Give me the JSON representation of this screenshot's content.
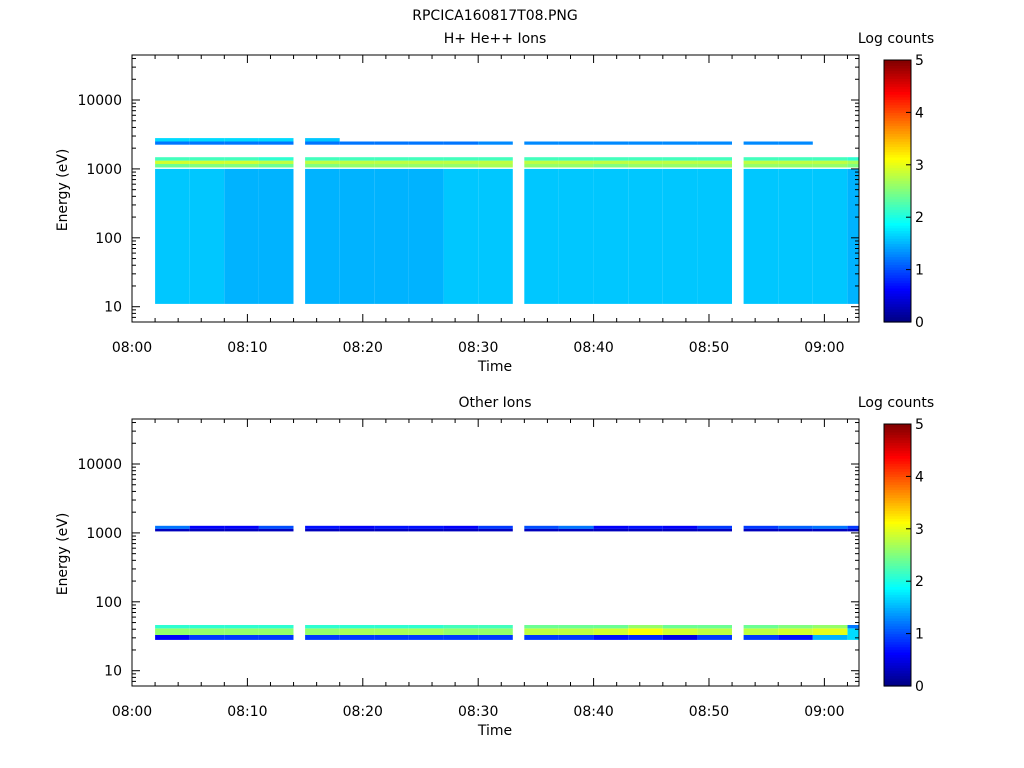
{
  "figure": {
    "title": "RPCICA160817T08.PNG"
  },
  "chart_data": [
    {
      "type": "heatmap",
      "title": "H+ He++ Ions",
      "xlabel": "Time",
      "ylabel": "Energy (eV)",
      "yscale": "log",
      "xlim": [
        "08:00",
        "09:03"
      ],
      "ylim": [
        6,
        45000
      ],
      "xticks": [
        "08:00",
        "08:10",
        "08:20",
        "08:30",
        "08:40",
        "08:50",
        "09:00"
      ],
      "yticks": [
        "10",
        "100",
        "1000",
        "10000"
      ],
      "colorbar": {
        "label": "Log counts",
        "range": [
          0,
          5
        ],
        "ticks": [
          "0",
          "1",
          "2",
          "3",
          "4",
          "5"
        ],
        "colormap": "jet"
      },
      "time_bins": [
        "08:02",
        "08:05",
        "08:08",
        "08:11",
        "08:15",
        "08:18",
        "08:21",
        "08:24",
        "08:27",
        "08:30",
        "08:34",
        "08:37",
        "08:40",
        "08:43",
        "08:46",
        "08:49",
        "08:53",
        "08:56",
        "08:59",
        "09:02"
      ],
      "cells": [
        [
          0,
          11,
          1000,
          1.6
        ],
        [
          1,
          11,
          1000,
          1.6
        ],
        [
          2,
          11,
          1000,
          1.5
        ],
        [
          3,
          11,
          1000,
          1.5
        ],
        [
          4,
          11,
          1000,
          1.5
        ],
        [
          5,
          11,
          1000,
          1.5
        ],
        [
          6,
          11,
          1000,
          1.5
        ],
        [
          7,
          11,
          1000,
          1.5
        ],
        [
          8,
          11,
          1000,
          1.6
        ],
        [
          9,
          11,
          1000,
          1.6
        ],
        [
          10,
          11,
          1000,
          1.6
        ],
        [
          11,
          11,
          1000,
          1.6
        ],
        [
          12,
          11,
          1000,
          1.6
        ],
        [
          13,
          11,
          1000,
          1.6
        ],
        [
          14,
          11,
          1000,
          1.6
        ],
        [
          15,
          11,
          1000,
          1.6
        ],
        [
          16,
          11,
          1000,
          1.6
        ],
        [
          17,
          11,
          1000,
          1.6
        ],
        [
          18,
          11,
          1000,
          1.6
        ],
        [
          19,
          11,
          1000,
          1.5
        ],
        [
          0,
          1050,
          1180,
          2.4
        ],
        [
          1,
          1050,
          1180,
          2.5
        ],
        [
          2,
          1050,
          1180,
          2.5
        ],
        [
          3,
          1050,
          1180,
          2.4
        ],
        [
          4,
          1050,
          1180,
          2.5
        ],
        [
          5,
          1050,
          1180,
          2.6
        ],
        [
          6,
          1050,
          1180,
          2.6
        ],
        [
          7,
          1050,
          1180,
          2.6
        ],
        [
          8,
          1050,
          1180,
          2.6
        ],
        [
          9,
          1050,
          1180,
          2.7
        ],
        [
          10,
          1050,
          1180,
          2.6
        ],
        [
          11,
          1050,
          1180,
          2.6
        ],
        [
          12,
          1050,
          1180,
          2.5
        ],
        [
          13,
          1050,
          1180,
          2.6
        ],
        [
          14,
          1050,
          1180,
          2.6
        ],
        [
          15,
          1050,
          1180,
          2.6
        ],
        [
          16,
          1050,
          1180,
          2.6
        ],
        [
          17,
          1050,
          1180,
          2.6
        ],
        [
          18,
          1050,
          1180,
          2.6
        ],
        [
          19,
          1050,
          1180,
          2.5
        ],
        [
          0,
          1180,
          1320,
          2.9
        ],
        [
          1,
          1180,
          1320,
          2.9
        ],
        [
          2,
          1180,
          1320,
          2.9
        ],
        [
          3,
          1180,
          1320,
          2.8
        ],
        [
          4,
          1180,
          1320,
          2.8
        ],
        [
          5,
          1180,
          1320,
          2.8
        ],
        [
          6,
          1180,
          1320,
          2.8
        ],
        [
          7,
          1180,
          1320,
          2.8
        ],
        [
          8,
          1180,
          1320,
          2.8
        ],
        [
          9,
          1180,
          1320,
          2.8
        ],
        [
          10,
          1180,
          1320,
          2.8
        ],
        [
          11,
          1180,
          1320,
          2.8
        ],
        [
          12,
          1180,
          1320,
          2.8
        ],
        [
          13,
          1180,
          1320,
          2.8
        ],
        [
          14,
          1180,
          1320,
          2.8
        ],
        [
          15,
          1180,
          1320,
          2.8
        ],
        [
          16,
          1180,
          1320,
          2.8
        ],
        [
          17,
          1180,
          1320,
          2.8
        ],
        [
          18,
          1180,
          1320,
          2.8
        ],
        [
          19,
          1180,
          1320,
          2.7
        ],
        [
          0,
          1320,
          1480,
          2.2
        ],
        [
          1,
          1320,
          1480,
          2.2
        ],
        [
          2,
          1320,
          1480,
          2.2
        ],
        [
          3,
          1320,
          1480,
          2.1
        ],
        [
          4,
          1320,
          1480,
          2.2
        ],
        [
          5,
          1320,
          1480,
          2.2
        ],
        [
          6,
          1320,
          1480,
          2.2
        ],
        [
          7,
          1320,
          1480,
          2.2
        ],
        [
          8,
          1320,
          1480,
          2.2
        ],
        [
          9,
          1320,
          1480,
          2.2
        ],
        [
          10,
          1320,
          1480,
          2.2
        ],
        [
          11,
          1320,
          1480,
          2.2
        ],
        [
          12,
          1320,
          1480,
          2.2
        ],
        [
          13,
          1320,
          1480,
          2.2
        ],
        [
          14,
          1320,
          1480,
          2.2
        ],
        [
          15,
          1320,
          1480,
          2.2
        ],
        [
          16,
          1320,
          1480,
          2.2
        ],
        [
          17,
          1320,
          1480,
          2.2
        ],
        [
          18,
          1320,
          1480,
          2.2
        ],
        [
          19,
          1320,
          1480,
          2.1
        ],
        [
          0,
          2250,
          2500,
          1.2
        ],
        [
          1,
          2250,
          2500,
          1.2
        ],
        [
          2,
          2250,
          2500,
          1.2
        ],
        [
          3,
          2250,
          2500,
          1.2
        ],
        [
          4,
          2250,
          2500,
          1.2
        ],
        [
          5,
          2250,
          2500,
          1.2
        ],
        [
          6,
          2250,
          2500,
          1.2
        ],
        [
          7,
          2250,
          2500,
          1.2
        ],
        [
          8,
          2250,
          2500,
          1.2
        ],
        [
          9,
          2250,
          2500,
          1.3
        ],
        [
          10,
          2250,
          2500,
          1.3
        ],
        [
          11,
          2250,
          2500,
          1.3
        ],
        [
          12,
          2250,
          2500,
          1.3
        ],
        [
          13,
          2250,
          2500,
          1.3
        ],
        [
          14,
          2250,
          2500,
          1.3
        ],
        [
          15,
          2250,
          2500,
          1.3
        ],
        [
          16,
          2250,
          2500,
          1.3
        ],
        [
          17,
          2250,
          2500,
          1.3
        ],
        [
          0,
          2500,
          2800,
          1.7
        ],
        [
          1,
          2500,
          2800,
          1.7
        ],
        [
          2,
          2500,
          2800,
          1.7
        ],
        [
          3,
          2500,
          2800,
          1.7
        ],
        [
          4,
          2500,
          2800,
          1.6
        ]
      ]
    },
    {
      "type": "heatmap",
      "title": "Other Ions",
      "xlabel": "Time",
      "ylabel": "Energy (eV)",
      "yscale": "log",
      "xlim": [
        "08:00",
        "09:03"
      ],
      "ylim": [
        6,
        45000
      ],
      "xticks": [
        "08:00",
        "08:10",
        "08:20",
        "08:30",
        "08:40",
        "08:50",
        "09:00"
      ],
      "yticks": [
        "10",
        "100",
        "1000",
        "10000"
      ],
      "colorbar": {
        "label": "Log counts",
        "range": [
          0,
          5
        ],
        "ticks": [
          "0",
          "1",
          "2",
          "3",
          "4",
          "5"
        ],
        "colormap": "jet"
      },
      "time_bins": [
        "08:02",
        "08:05",
        "08:08",
        "08:11",
        "08:15",
        "08:18",
        "08:21",
        "08:24",
        "08:27",
        "08:30",
        "08:34",
        "08:37",
        "08:40",
        "08:43",
        "08:46",
        "08:49",
        "08:53",
        "08:56",
        "08:59",
        "09:02"
      ],
      "cells": [
        [
          0,
          1050,
          1150,
          0.3
        ],
        [
          1,
          1050,
          1150,
          0.3
        ],
        [
          2,
          1050,
          1150,
          0.3
        ],
        [
          3,
          1050,
          1150,
          0.3
        ],
        [
          4,
          1050,
          1150,
          0.3
        ],
        [
          5,
          1050,
          1150,
          0.3
        ],
        [
          6,
          1050,
          1150,
          0.3
        ],
        [
          7,
          1050,
          1150,
          0.3
        ],
        [
          8,
          1050,
          1150,
          0.3
        ],
        [
          9,
          1050,
          1150,
          0.3
        ],
        [
          10,
          1050,
          1150,
          0.3
        ],
        [
          11,
          1050,
          1150,
          0.3
        ],
        [
          12,
          1050,
          1150,
          0.3
        ],
        [
          13,
          1050,
          1150,
          0.3
        ],
        [
          14,
          1050,
          1150,
          0.3
        ],
        [
          15,
          1050,
          1150,
          0.3
        ],
        [
          16,
          1050,
          1150,
          0.3
        ],
        [
          17,
          1050,
          1150,
          0.3
        ],
        [
          18,
          1050,
          1150,
          0.3
        ],
        [
          19,
          1050,
          1150,
          0.3
        ],
        [
          0,
          1150,
          1270,
          1.2
        ],
        [
          1,
          1150,
          1270,
          0.6
        ],
        [
          2,
          1150,
          1270,
          0.6
        ],
        [
          3,
          1150,
          1270,
          1.0
        ],
        [
          4,
          1150,
          1270,
          0.7
        ],
        [
          5,
          1150,
          1270,
          0.6
        ],
        [
          6,
          1150,
          1270,
          0.7
        ],
        [
          7,
          1150,
          1270,
          0.7
        ],
        [
          8,
          1150,
          1270,
          0.6
        ],
        [
          9,
          1150,
          1270,
          0.9
        ],
        [
          10,
          1150,
          1270,
          1.0
        ],
        [
          11,
          1150,
          1270,
          1.2
        ],
        [
          12,
          1150,
          1270,
          0.6
        ],
        [
          13,
          1150,
          1270,
          0.7
        ],
        [
          14,
          1150,
          1270,
          0.6
        ],
        [
          15,
          1150,
          1270,
          0.9
        ],
        [
          16,
          1150,
          1270,
          0.9
        ],
        [
          17,
          1150,
          1270,
          1.1
        ],
        [
          18,
          1150,
          1270,
          1.2
        ],
        [
          19,
          1150,
          1270,
          0.9
        ],
        [
          0,
          28,
          33,
          0.6
        ],
        [
          1,
          28,
          33,
          0.9
        ],
        [
          2,
          28,
          33,
          0.9
        ],
        [
          3,
          28,
          33,
          0.9
        ],
        [
          4,
          28,
          33,
          0.9
        ],
        [
          5,
          28,
          33,
          0.9
        ],
        [
          6,
          28,
          33,
          0.9
        ],
        [
          7,
          28,
          33,
          0.9
        ],
        [
          8,
          28,
          33,
          0.9
        ],
        [
          9,
          28,
          33,
          0.9
        ],
        [
          10,
          28,
          33,
          0.9
        ],
        [
          11,
          28,
          33,
          0.9
        ],
        [
          12,
          28,
          33,
          0.7
        ],
        [
          13,
          28,
          33,
          0.8
        ],
        [
          14,
          28,
          33,
          0.5
        ],
        [
          15,
          28,
          33,
          0.9
        ],
        [
          16,
          28,
          33,
          0.9
        ],
        [
          17,
          28,
          33,
          0.7
        ],
        [
          18,
          28,
          33,
          1.5
        ],
        [
          19,
          28,
          33,
          1.7
        ],
        [
          0,
          33,
          41,
          2.6
        ],
        [
          1,
          33,
          41,
          2.6
        ],
        [
          2,
          33,
          41,
          2.6
        ],
        [
          3,
          33,
          41,
          2.6
        ],
        [
          4,
          33,
          41,
          2.6
        ],
        [
          5,
          33,
          41,
          2.7
        ],
        [
          6,
          33,
          41,
          2.7
        ],
        [
          7,
          33,
          41,
          2.7
        ],
        [
          8,
          33,
          41,
          2.6
        ],
        [
          9,
          33,
          41,
          2.6
        ],
        [
          10,
          33,
          41,
          2.8
        ],
        [
          11,
          33,
          41,
          2.8
        ],
        [
          12,
          33,
          41,
          2.9
        ],
        [
          13,
          33,
          41,
          3.1
        ],
        [
          14,
          33,
          41,
          2.9
        ],
        [
          15,
          33,
          41,
          2.8
        ],
        [
          16,
          33,
          41,
          2.8
        ],
        [
          17,
          33,
          41,
          2.9
        ],
        [
          18,
          33,
          41,
          3.0
        ],
        [
          19,
          33,
          41,
          1.7
        ],
        [
          0,
          41,
          46,
          2.1
        ],
        [
          1,
          41,
          46,
          2.1
        ],
        [
          2,
          41,
          46,
          2.1
        ],
        [
          3,
          41,
          46,
          2.1
        ],
        [
          4,
          41,
          46,
          2.1
        ],
        [
          5,
          41,
          46,
          2.1
        ],
        [
          6,
          41,
          46,
          2.1
        ],
        [
          7,
          41,
          46,
          2.1
        ],
        [
          8,
          41,
          46,
          2.2
        ],
        [
          9,
          41,
          46,
          2.2
        ],
        [
          10,
          41,
          46,
          2.4
        ],
        [
          11,
          41,
          46,
          2.4
        ],
        [
          12,
          41,
          46,
          2.4
        ],
        [
          13,
          41,
          46,
          2.6
        ],
        [
          14,
          41,
          46,
          2.4
        ],
        [
          15,
          41,
          46,
          2.4
        ],
        [
          16,
          41,
          46,
          2.4
        ],
        [
          17,
          41,
          46,
          2.5
        ],
        [
          18,
          41,
          46,
          2.6
        ],
        [
          19,
          41,
          46,
          1.2
        ]
      ]
    }
  ],
  "colors": {
    "axis": "#000000",
    "background": "#ffffff"
  }
}
